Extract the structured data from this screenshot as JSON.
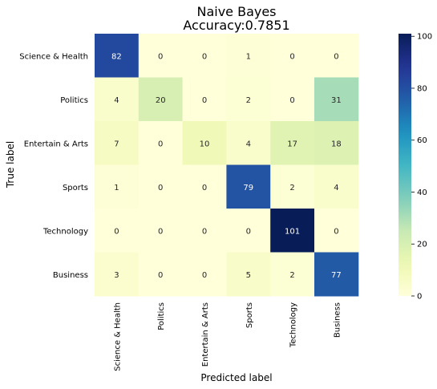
{
  "chart_data": {
    "type": "heatmap",
    "title": "Naive Bayes",
    "subtitle": "Accuracy:0.7851",
    "xlabel": "Predicted label",
    "ylabel": "True label",
    "x_categories": [
      "Science & Health",
      "Politics",
      "Entertain & Arts",
      "Sports",
      "Technology",
      "Business"
    ],
    "y_categories": [
      "Science & Health",
      "Politics",
      "Entertain & Arts",
      "Sports",
      "Technology",
      "Business"
    ],
    "values": [
      [
        82,
        0,
        0,
        1,
        0,
        0
      ],
      [
        4,
        20,
        0,
        2,
        0,
        31
      ],
      [
        7,
        0,
        10,
        4,
        17,
        18
      ],
      [
        1,
        0,
        0,
        79,
        2,
        4
      ],
      [
        0,
        0,
        0,
        0,
        101,
        0
      ],
      [
        3,
        0,
        0,
        5,
        2,
        77
      ]
    ],
    "colorbar": {
      "colormap": "YlGnBu",
      "range": [
        0,
        101
      ],
      "ticks": [
        0,
        20,
        40,
        60,
        80,
        100
      ]
    },
    "colors": {
      "low": "#ffffd9",
      "high": "#081d58"
    },
    "annotations": "cell counts shown in each cell",
    "grid": false
  }
}
